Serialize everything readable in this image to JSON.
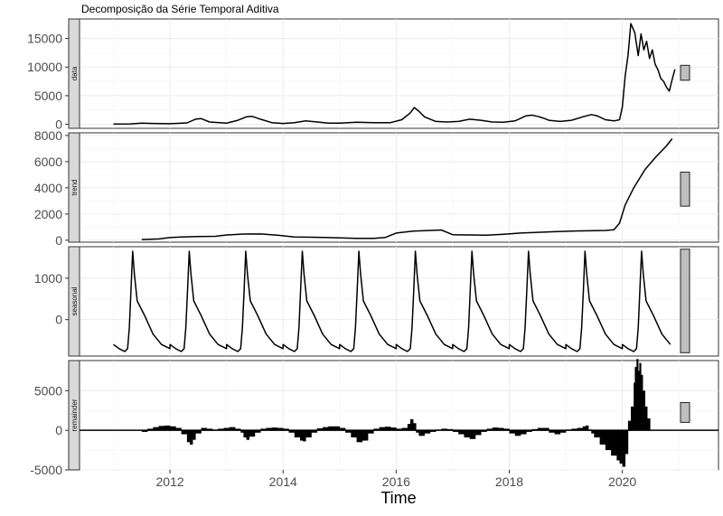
{
  "chart_data": {
    "type": "line",
    "title": "Decomposição da Série Temporal Aditiva",
    "xlabel": "Time",
    "x_ticks": [
      2012,
      2014,
      2016,
      2018,
      2020
    ],
    "xlim": [
      2010.4,
      2021.7
    ],
    "grid": true,
    "panels": [
      {
        "name": "data",
        "kind": "line",
        "ylim": [
          -700,
          18400
        ],
        "y_ticks": [
          0,
          5000,
          10000,
          15000
        ],
        "range_bar": [
          7700,
          10300
        ],
        "x": [
          2011.0,
          2011.3,
          2011.5,
          2011.7,
          2012.0,
          2012.3,
          2012.45,
          2012.55,
          2012.7,
          2013.0,
          2013.2,
          2013.35,
          2013.45,
          2013.6,
          2013.8,
          2014.0,
          2014.2,
          2014.4,
          2014.6,
          2014.8,
          2015.0,
          2015.3,
          2015.6,
          2015.9,
          2016.1,
          2016.25,
          2016.32,
          2016.4,
          2016.5,
          2016.7,
          2016.9,
          2017.1,
          2017.3,
          2017.5,
          2017.7,
          2017.9,
          2018.1,
          2018.3,
          2018.4,
          2018.5,
          2018.6,
          2018.7,
          2018.9,
          2019.1,
          2019.3,
          2019.45,
          2019.55,
          2019.7,
          2019.85,
          2019.95,
          2020.0,
          2020.05,
          2020.1,
          2020.15,
          2020.22,
          2020.28,
          2020.33,
          2020.38,
          2020.43,
          2020.48,
          2020.53,
          2020.58,
          2020.63,
          2020.68,
          2020.73,
          2020.78,
          2020.83,
          2020.88,
          2020.93
        ],
        "y": [
          50,
          80,
          200,
          150,
          100,
          250,
          900,
          1000,
          400,
          200,
          700,
          1300,
          1400,
          900,
          300,
          150,
          300,
          600,
          400,
          200,
          200,
          350,
          300,
          300,
          800,
          2000,
          2950,
          2300,
          1300,
          500,
          400,
          500,
          900,
          700,
          400,
          350,
          600,
          1500,
          1600,
          1400,
          1100,
          700,
          500,
          700,
          1300,
          1700,
          1500,
          800,
          600,
          800,
          3000,
          8500,
          12000,
          17600,
          16000,
          12000,
          15800,
          13000,
          14500,
          11500,
          13000,
          10500,
          9500,
          8000,
          7500,
          6500,
          5800,
          7800,
          9600
        ]
      },
      {
        "name": "trend",
        "kind": "line",
        "ylim": [
          -150,
          8200
        ],
        "y_ticks": [
          0,
          2000,
          4000,
          6000,
          8000
        ],
        "range_bar": [
          2600,
          5200
        ],
        "x": [
          2011.5,
          2011.8,
          2012.0,
          2012.2,
          2012.5,
          2012.8,
          2013.0,
          2013.3,
          2013.6,
          2013.9,
          2014.2,
          2014.5,
          2014.8,
          2015.0,
          2015.3,
          2015.6,
          2015.8,
          2016.0,
          2016.3,
          2016.6,
          2016.8,
          2017.0,
          2017.3,
          2017.6,
          2017.9,
          2018.2,
          2018.5,
          2018.8,
          2019.1,
          2019.4,
          2019.7,
          2019.85,
          2019.95,
          2020.05,
          2020.2,
          2020.4,
          2020.6,
          2020.78,
          2020.88
        ],
        "y": [
          50,
          100,
          200,
          250,
          280,
          300,
          400,
          470,
          480,
          380,
          250,
          230,
          200,
          180,
          150,
          150,
          200,
          550,
          700,
          750,
          780,
          420,
          400,
          380,
          450,
          550,
          600,
          650,
          700,
          720,
          750,
          800,
          1300,
          2700,
          4000,
          5400,
          6400,
          7200,
          7750
        ]
      },
      {
        "name": "seasonal",
        "kind": "line",
        "ylim": [
          -880,
          1760
        ],
        "y_ticks": [
          0,
          1000
        ],
        "range_bar": [
          -800,
          1700
        ],
        "period_x": [
          0.0,
          0.1,
          0.2,
          0.25,
          0.28,
          0.31,
          0.34,
          0.37,
          0.42,
          0.55,
          0.7,
          0.85,
          1.0
        ],
        "period_y": [
          -600,
          -700,
          -770,
          -700,
          -200,
          700,
          1650,
          1100,
          450,
          100,
          -350,
          -600,
          -700
        ],
        "start_x": 2011.0,
        "end_x": 2020.9
      },
      {
        "name": "remainder",
        "kind": "bar",
        "ylim": [
          -5000,
          8800
        ],
        "y_ticks": [
          -5000,
          0,
          5000
        ],
        "range_bar": [
          1000,
          3500
        ],
        "x": [
          2011.5,
          2011.6,
          2011.7,
          2011.8,
          2011.9,
          2012.0,
          2012.1,
          2012.2,
          2012.3,
          2012.35,
          2012.4,
          2012.45,
          2012.55,
          2012.65,
          2012.75,
          2012.85,
          2012.95,
          2013.05,
          2013.15,
          2013.25,
          2013.3,
          2013.35,
          2013.4,
          2013.5,
          2013.6,
          2013.7,
          2013.8,
          2013.9,
          2014.0,
          2014.1,
          2014.2,
          2014.3,
          2014.35,
          2014.4,
          2014.5,
          2014.6,
          2014.7,
          2014.8,
          2014.9,
          2015.0,
          2015.1,
          2015.2,
          2015.3,
          2015.4,
          2015.5,
          2015.6,
          2015.7,
          2015.8,
          2015.9,
          2016.0,
          2016.1,
          2016.2,
          2016.25,
          2016.3,
          2016.35,
          2016.4,
          2016.5,
          2016.6,
          2016.7,
          2016.8,
          2016.9,
          2017.0,
          2017.1,
          2017.2,
          2017.3,
          2017.4,
          2017.5,
          2017.6,
          2017.7,
          2017.8,
          2017.9,
          2018.0,
          2018.1,
          2018.2,
          2018.3,
          2018.4,
          2018.5,
          2018.6,
          2018.7,
          2018.8,
          2018.9,
          2019.0,
          2019.1,
          2019.2,
          2019.3,
          2019.35,
          2019.4,
          2019.45,
          2019.5,
          2019.6,
          2019.7,
          2019.8,
          2019.9,
          2019.95,
          2020.0,
          2020.05,
          2020.1,
          2020.15,
          2020.2,
          2020.22,
          2020.25,
          2020.28,
          2020.3,
          2020.33,
          2020.36,
          2020.4,
          2020.44
        ],
        "y": [
          -200,
          200,
          400,
          550,
          600,
          500,
          300,
          -500,
          -1500,
          -1800,
          -1200,
          -400,
          300,
          200,
          100,
          200,
          300,
          400,
          200,
          -300,
          -900,
          -1200,
          -800,
          -300,
          200,
          300,
          350,
          300,
          200,
          -300,
          -900,
          -1300,
          -1400,
          -900,
          -300,
          250,
          400,
          500,
          500,
          300,
          -300,
          -900,
          -1500,
          -1300,
          -400,
          200,
          400,
          450,
          350,
          200,
          300,
          800,
          1400,
          900,
          -300,
          -700,
          -400,
          -200,
          100,
          200,
          150,
          -200,
          -500,
          -900,
          -1100,
          -600,
          -200,
          200,
          350,
          300,
          200,
          -400,
          -700,
          -500,
          -200,
          150,
          300,
          300,
          -300,
          -500,
          -300,
          100,
          200,
          300,
          500,
          600,
          100,
          -400,
          -900,
          -1800,
          -2500,
          -3200,
          -3800,
          -4200,
          -4600,
          -3000,
          1200,
          3000,
          6000,
          8000,
          9000,
          7500,
          8500,
          7000,
          5000,
          3000,
          1500
        ]
      }
    ]
  }
}
